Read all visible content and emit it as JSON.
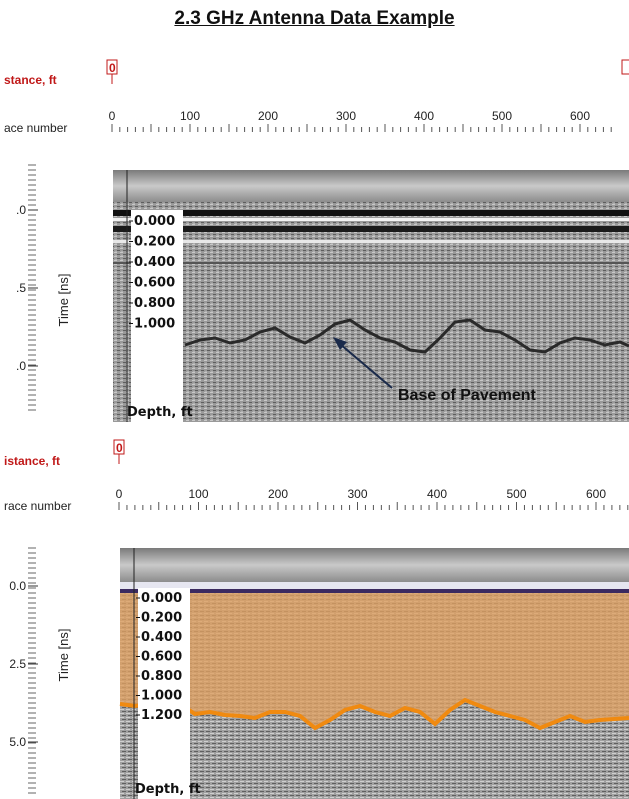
{
  "title": "2.3 GHz Antenna Data Example",
  "colors": {
    "label_red": "#c01818",
    "pick_orange": "#f08a10",
    "color_overlay": "#e0a060"
  },
  "chart_data": [
    {
      "type": "heatmap",
      "name": "radargram-raw",
      "distance_label": "stance, ft",
      "distance_marker": "0",
      "trace_label": "ace number",
      "trace_ticks": [
        "0",
        "100",
        "200",
        "300",
        "400",
        "500",
        "600"
      ],
      "time_axis_label": "Time [ns]",
      "time_tick_labels": [
        ".0",
        ".5",
        ".0"
      ],
      "depth_axis_label": "Depth, ft",
      "depth_ticks": [
        "0.000",
        "0.200",
        "0.400",
        "0.600",
        "0.800",
        "1.000"
      ],
      "annotation": "Base of Pavement",
      "grid": false
    },
    {
      "type": "heatmap",
      "name": "radargram-picked",
      "distance_label": "istance, ft",
      "distance_marker": "0",
      "trace_label": "race number",
      "trace_ticks": [
        "0",
        "100",
        "200",
        "300",
        "400",
        "500",
        "600"
      ],
      "time_axis_label": "Time [ns]",
      "time_tick_labels": [
        "0.0",
        "2.5",
        "5.0"
      ],
      "depth_axis_label": "Depth, ft",
      "depth_ticks": [
        "0.000",
        "0.200",
        "0.400",
        "0.600",
        "0.800",
        "1.000",
        "1.200"
      ],
      "grid": false
    }
  ]
}
